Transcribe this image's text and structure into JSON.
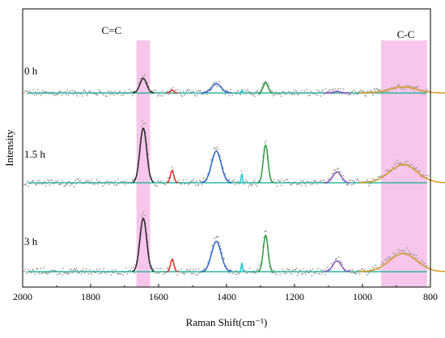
{
  "chart_data": {
    "type": "line",
    "xlabel": "Raman Shift(cm⁻¹)",
    "ylabel": "Intensity",
    "xlim": [
      2000,
      800
    ],
    "x_reversed": true,
    "x_ticks": [
      "2000",
      "1800",
      "1600",
      "1400",
      "1200",
      "1000",
      "800"
    ],
    "y_ticks_visible": false,
    "grid": false,
    "annotations": [
      "C=C",
      "C-C"
    ],
    "highlight_bands": [
      {
        "label": "C=C",
        "x_range": [
          1665,
          1625
        ],
        "color": "#f7c6ea"
      },
      {
        "label": "C-C",
        "x_range": [
          945,
          810
        ],
        "color": "#f7c6ea"
      }
    ],
    "baseline_color": "#2fb5a0",
    "raw_point_color": "#9a9a9a",
    "series": [
      {
        "name": "0 h",
        "peaks": [
          {
            "center": 1645,
            "height": 0.6,
            "width": 10,
            "color": "#222222"
          },
          {
            "center": 1560,
            "height": 0.12,
            "width": 5,
            "color": "#e0302c"
          },
          {
            "center": 1430,
            "height": 0.38,
            "width": 14,
            "color": "#2a62c9"
          },
          {
            "center": 1355,
            "height": 0.1,
            "width": 2,
            "color": "#1ec8d0"
          },
          {
            "center": 1285,
            "height": 0.42,
            "width": 7,
            "color": "#2a9a3f"
          },
          {
            "center": 1075,
            "height": 0.06,
            "width": 12,
            "color": "#8e55c8"
          },
          {
            "center": 880,
            "height": 0.25,
            "width": 40,
            "color": "#d99a1e"
          }
        ]
      },
      {
        "name": "1.5 h",
        "peaks": [
          {
            "center": 1645,
            "height": 2.25,
            "width": 10,
            "color": "#222222"
          },
          {
            "center": 1560,
            "height": 0.5,
            "width": 5,
            "color": "#e0302c"
          },
          {
            "center": 1430,
            "height": 1.3,
            "width": 14,
            "color": "#2a62c9"
          },
          {
            "center": 1355,
            "height": 0.35,
            "width": 2,
            "color": "#1ec8d0"
          },
          {
            "center": 1285,
            "height": 1.55,
            "width": 7,
            "color": "#2a9a3f"
          },
          {
            "center": 1075,
            "height": 0.45,
            "width": 12,
            "color": "#8e55c8"
          },
          {
            "center": 880,
            "height": 0.75,
            "width": 40,
            "color": "#d99a1e"
          }
        ]
      },
      {
        "name": "3 h",
        "peaks": [
          {
            "center": 1645,
            "height": 2.2,
            "width": 10,
            "color": "#222222"
          },
          {
            "center": 1560,
            "height": 0.5,
            "width": 5,
            "color": "#e0302c"
          },
          {
            "center": 1430,
            "height": 1.25,
            "width": 14,
            "color": "#2a62c9"
          },
          {
            "center": 1355,
            "height": 0.35,
            "width": 2,
            "color": "#1ec8d0"
          },
          {
            "center": 1285,
            "height": 1.5,
            "width": 7,
            "color": "#2a9a3f"
          },
          {
            "center": 1075,
            "height": 0.45,
            "width": 12,
            "color": "#8e55c8"
          },
          {
            "center": 880,
            "height": 0.75,
            "width": 40,
            "color": "#d99a1e"
          }
        ]
      }
    ]
  }
}
